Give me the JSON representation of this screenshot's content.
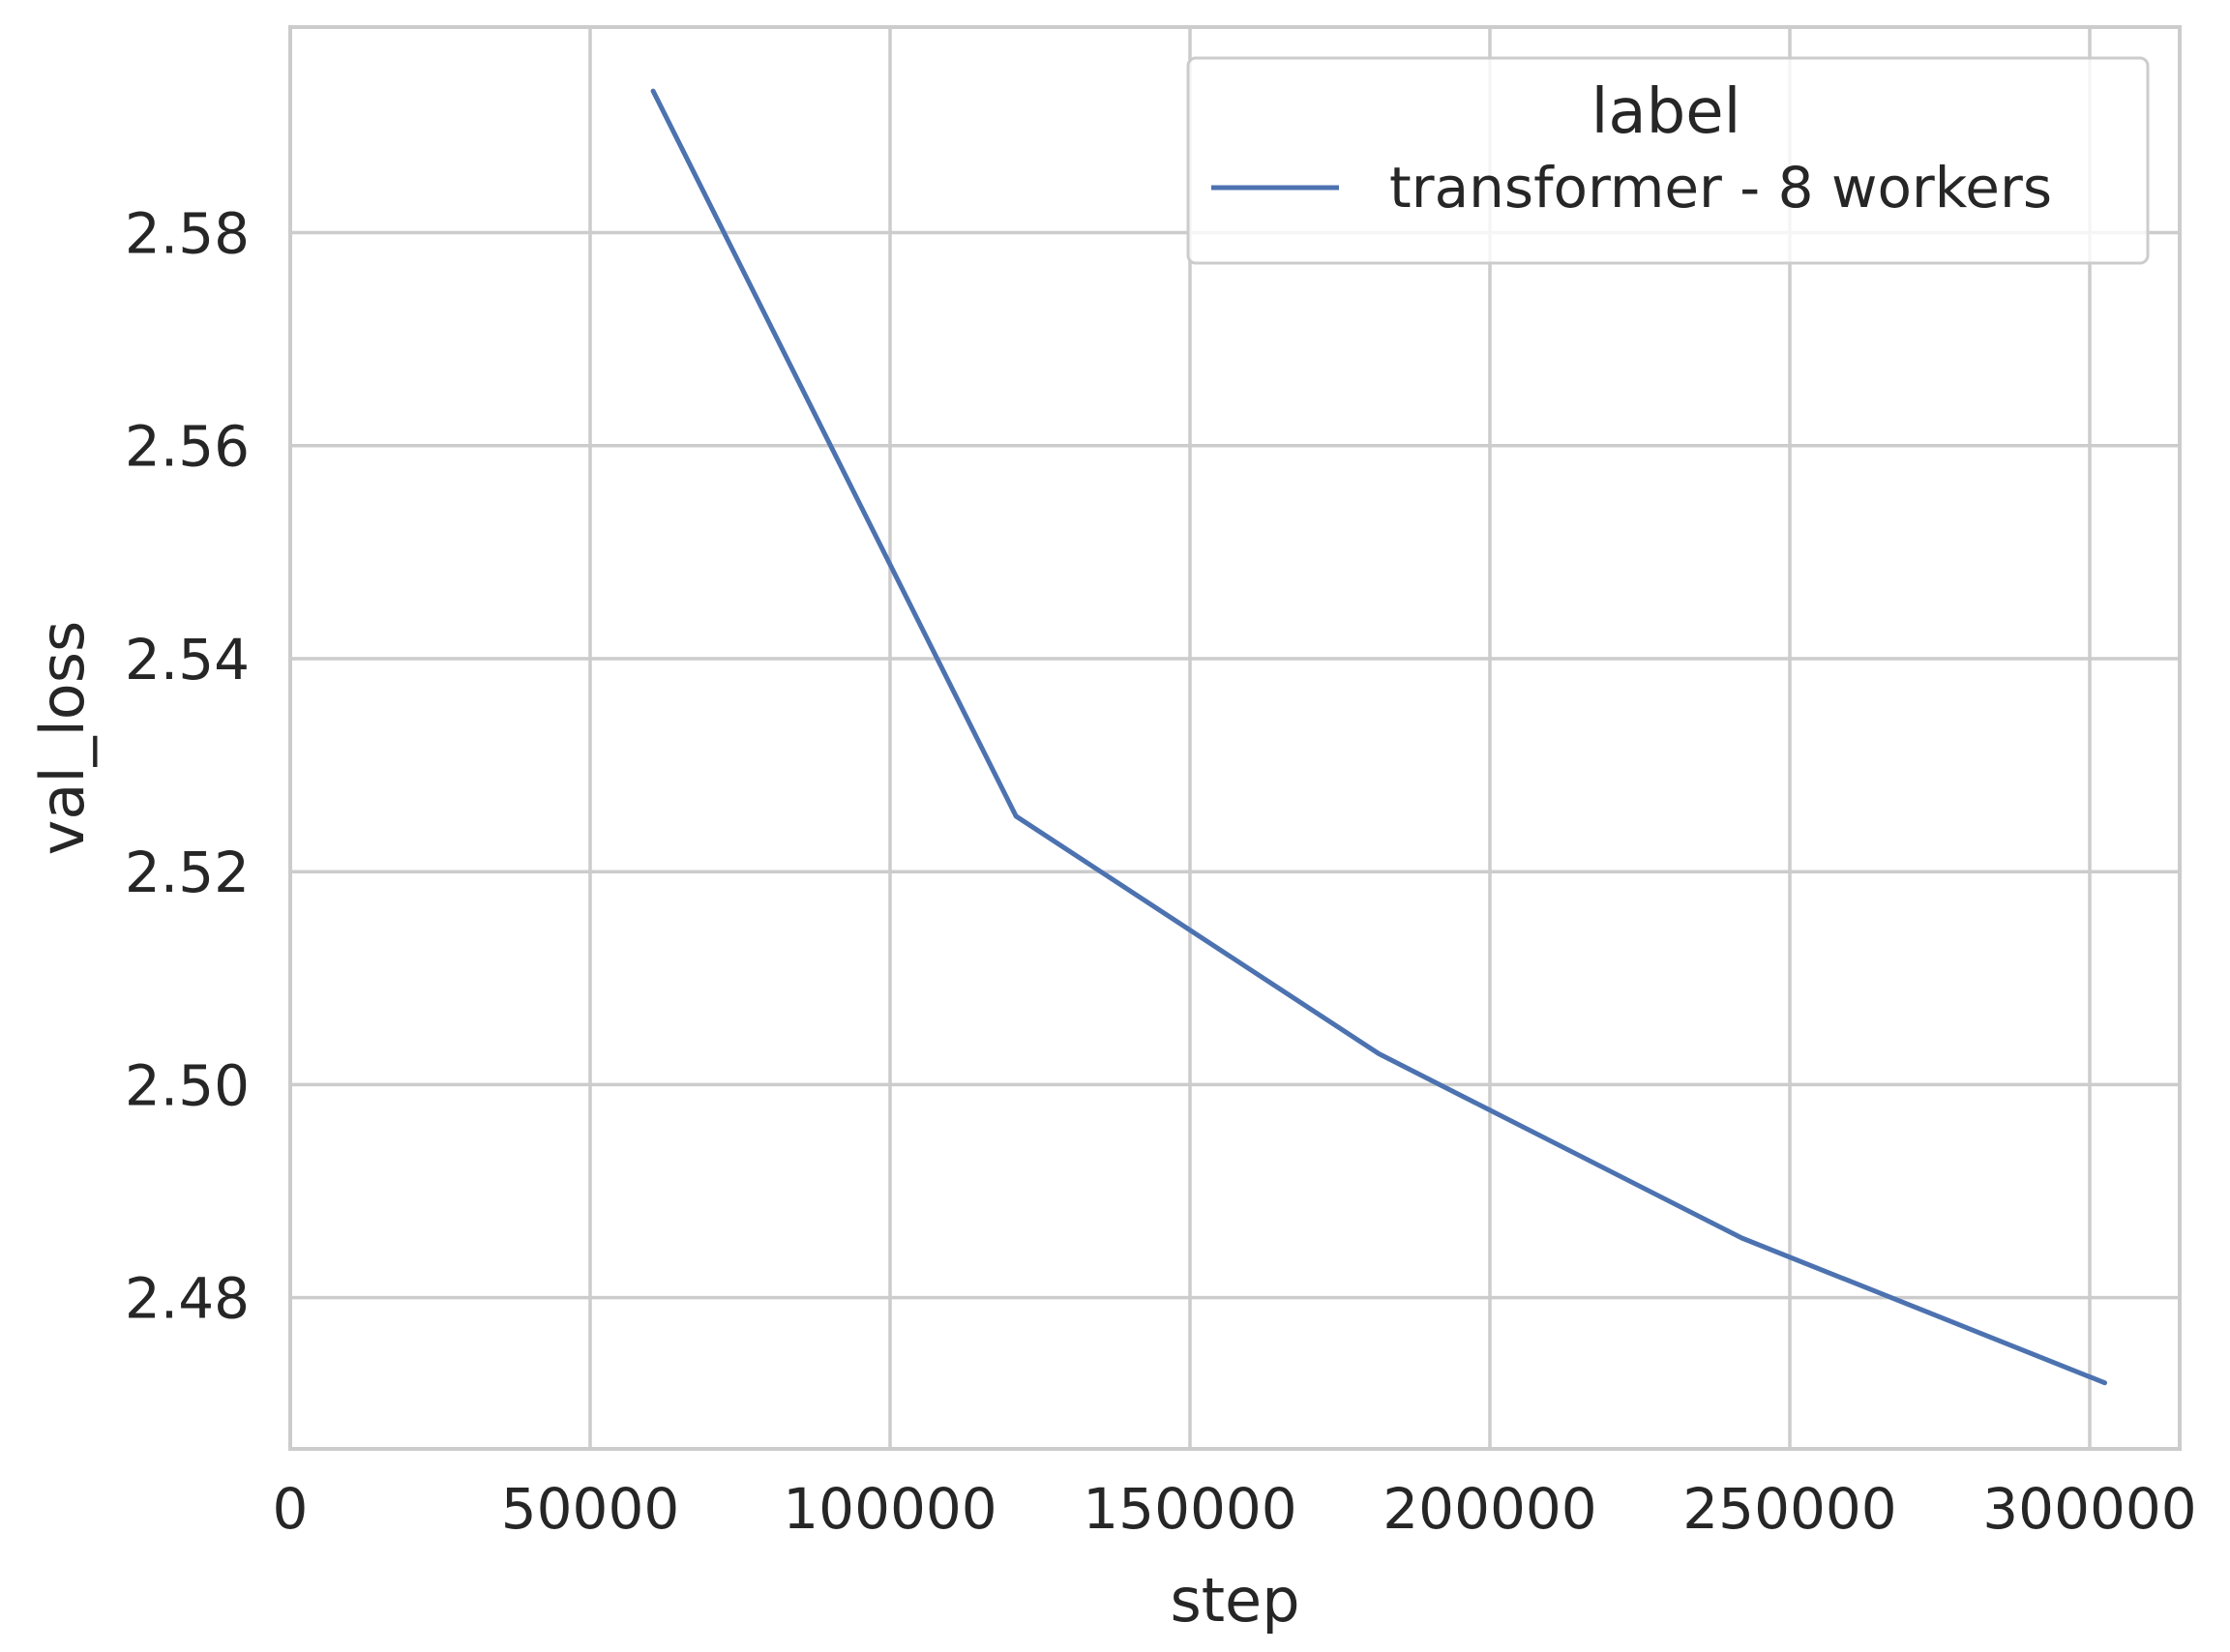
{
  "chart_data": {
    "type": "line",
    "xlabel": "step",
    "ylabel": "val_loss",
    "xlim": [
      0,
      315000
    ],
    "ylim": [
      2.4658,
      2.5993
    ],
    "xticks": [
      0,
      50000,
      100000,
      150000,
      200000,
      250000,
      300000
    ],
    "xtick_labels": [
      "0",
      "50000",
      "100000",
      "150000",
      "200000",
      "250000",
      "300000"
    ],
    "yticks": [
      2.48,
      2.5,
      2.52,
      2.54,
      2.56,
      2.58
    ],
    "ytick_labels": [
      "2.48",
      "2.50",
      "2.52",
      "2.54",
      "2.56",
      "2.58"
    ],
    "grid": true,
    "legend": {
      "title": "label",
      "placement": "top-right",
      "entries": [
        "transformer - 8 workers"
      ]
    },
    "series": [
      {
        "name": "transformer - 8 workers",
        "color": "#4c72b0",
        "x": [
          60500,
          121000,
          181500,
          242000,
          302500
        ],
        "y": [
          2.5933,
          2.5252,
          2.5029,
          2.4856,
          2.472
        ]
      }
    ]
  }
}
